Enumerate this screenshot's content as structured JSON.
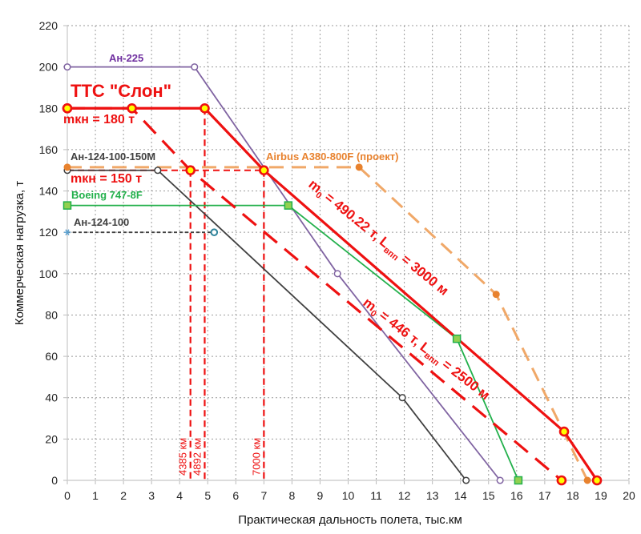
{
  "chart_data": {
    "type": "line",
    "title": "",
    "xlabel": "Практическая дальность полета, тыс.км",
    "ylabel": "Коммерческая нагрузка, т",
    "xlim": [
      0,
      20
    ],
    "ylim": [
      0,
      220
    ],
    "xticks": [
      0,
      1,
      2,
      3,
      4,
      5,
      6,
      7,
      8,
      9,
      10,
      11,
      12,
      13,
      14,
      15,
      16,
      17,
      18,
      19,
      20
    ],
    "yticks": [
      0,
      20,
      40,
      60,
      80,
      100,
      120,
      140,
      160,
      180,
      200,
      220
    ],
    "grid": true,
    "legend": "none",
    "series": [
      {
        "name": "Ан-225",
        "color": "#8064a2",
        "dash": "solid",
        "marker": "circle-open",
        "points": [
          [
            0,
            200
          ],
          [
            4.53,
            200
          ],
          [
            9.62,
            100
          ],
          [
            15.41,
            0
          ]
        ]
      },
      {
        "name": "Ан-124-100-150М",
        "color": "#404040",
        "dash": "solid",
        "marker": "circle-open",
        "points": [
          [
            0,
            150
          ],
          [
            3.22,
            150
          ],
          [
            11.93,
            40
          ],
          [
            14.2,
            0
          ]
        ]
      },
      {
        "name": "Ан-124-100",
        "color": "#404040",
        "dash": "short",
        "marker": "asterisk",
        "points": [
          [
            0,
            120
          ],
          [
            5.23,
            120
          ]
        ]
      },
      {
        "name": "Boeing 747-8F",
        "color": "#22b04b",
        "dash": "solid",
        "marker": "square",
        "points": [
          [
            0,
            133
          ],
          [
            7.87,
            133
          ],
          [
            13.87,
            68.5
          ],
          [
            16.06,
            0
          ]
        ]
      },
      {
        "name": "Airbus A380-800F (проект)",
        "color": "#f0a868",
        "dash": "long",
        "marker": "dot-orange",
        "points": [
          [
            0,
            151.5
          ],
          [
            10.39,
            151.5
          ],
          [
            15.27,
            90
          ],
          [
            18.52,
            0
          ]
        ]
      },
      {
        "name": "ТТС \"Слон\" m0 = 490.22 т, Lвпп = 3000 м",
        "color": "#ee1111",
        "dash": "solid",
        "marker": "circle-red",
        "points": [
          [
            0,
            180
          ],
          [
            4.892,
            180
          ],
          [
            7.0,
            150
          ],
          [
            17.69,
            23.6
          ],
          [
            18.86,
            0
          ]
        ]
      },
      {
        "name": "ТТС \"Слон\" m0 = 446 т, Lвпп = 2500 м",
        "color": "#ee1111",
        "dash": "long",
        "marker": "circle-red",
        "points": [
          [
            0,
            180
          ],
          [
            2.3,
            180
          ],
          [
            4.385,
            150
          ],
          [
            17.6,
            0
          ]
        ]
      }
    ],
    "reference_lines": [
      {
        "label": "4385 км",
        "x": 4.385,
        "y": 150
      },
      {
        "label": "4892 км",
        "x": 4.892,
        "y": 180
      },
      {
        "label": "7000 км",
        "x": 7.0,
        "y": 150
      }
    ],
    "horizontal_reference": {
      "y": 150,
      "x_to": 7.0
    },
    "annotations": [
      {
        "name": "series-label-an225",
        "text": "Ан-225",
        "color": "#7030a0"
      },
      {
        "name": "series-label-tts",
        "text": "ТТС \"Слон\"",
        "color": "#ee1111"
      },
      {
        "name": "mkn-180",
        "text": "mкн = 180 т",
        "color": "#ee1111"
      },
      {
        "name": "mkn-150",
        "text": "mкн = 150 т",
        "color": "#ee1111"
      },
      {
        "name": "series-label-an124-150m",
        "text": "Ан-124-100-150М",
        "color": "#404040"
      },
      {
        "name": "series-label-boeing",
        "text": "Boeing 747-8F",
        "color": "#22b04b"
      },
      {
        "name": "series-label-an124-100",
        "text": "Ан-124-100",
        "color": "#404040"
      },
      {
        "name": "series-label-airbus",
        "text": "Airbus A380-800F (проект)",
        "color": "#e8822e"
      }
    ],
    "slope_labels": [
      {
        "name": "label-m0-490",
        "m0": "m",
        "sub0": "0",
        "mid": " = 490.22 т, L",
        "sub1": "впп",
        "end": " = 3000 м"
      },
      {
        "name": "label-m0-446",
        "m0": "m",
        "sub0": "0",
        "mid": " = 446 т, L",
        "sub1": "впп",
        "end": " = 2500 м"
      }
    ]
  }
}
